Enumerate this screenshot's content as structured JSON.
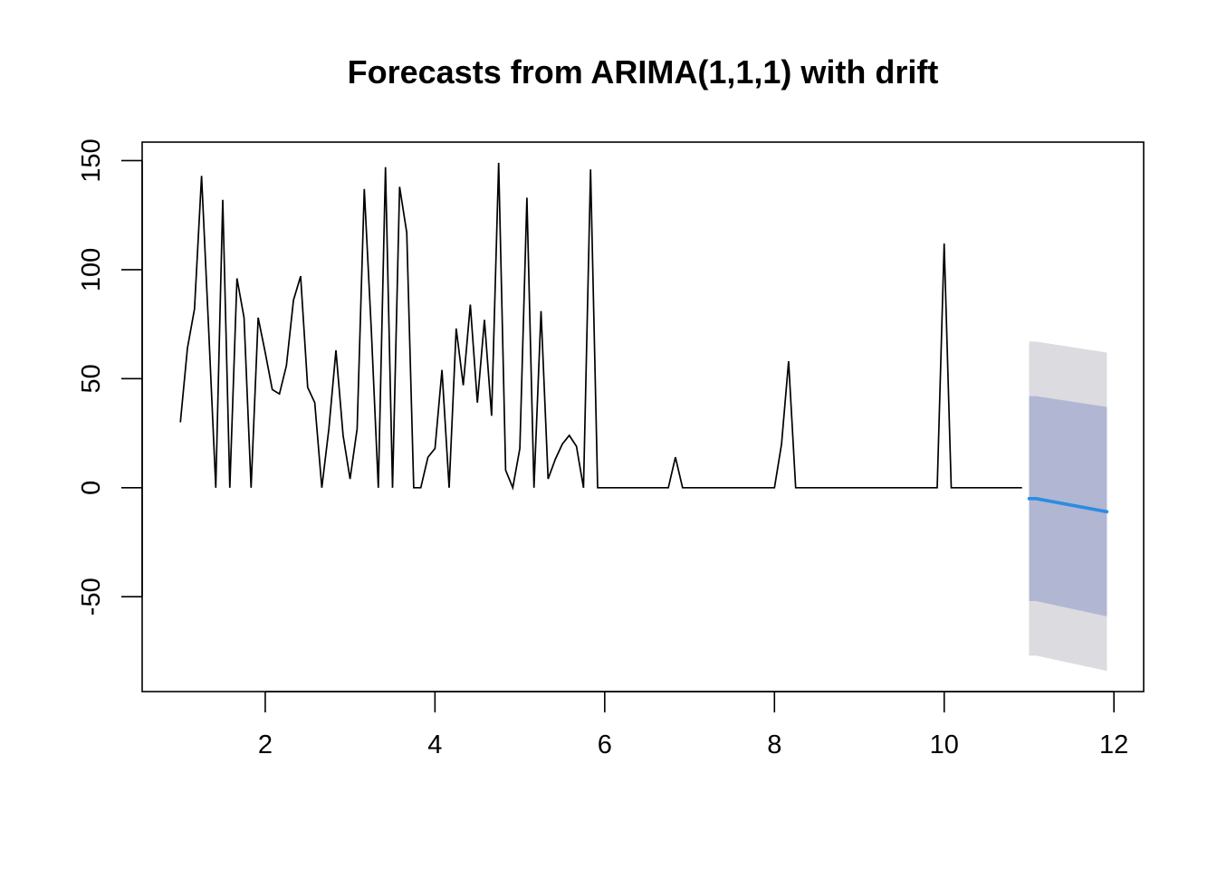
{
  "chart_data": {
    "type": "line",
    "title": "Forecasts from ARIMA(1,1,1) with drift",
    "xlabel": "",
    "ylabel": "",
    "xlim": [
      0.55,
      12.35
    ],
    "ylim": [
      -93.5,
      158.5
    ],
    "x_ticks": [
      2,
      4,
      6,
      8,
      10,
      12
    ],
    "y_ticks": [
      -50,
      0,
      50,
      100,
      150
    ],
    "grid": false,
    "legend": "none",
    "observed": {
      "x": [
        1.0,
        1.083,
        1.167,
        1.25,
        1.333,
        1.417,
        1.5,
        1.583,
        1.667,
        1.75,
        1.833,
        1.917,
        2.0,
        2.083,
        2.167,
        2.25,
        2.333,
        2.417,
        2.5,
        2.583,
        2.667,
        2.75,
        2.833,
        2.917,
        3.0,
        3.083,
        3.167,
        3.25,
        3.333,
        3.417,
        3.5,
        3.583,
        3.667,
        3.75,
        3.833,
        3.917,
        4.0,
        4.083,
        4.167,
        4.25,
        4.333,
        4.417,
        4.5,
        4.583,
        4.667,
        4.75,
        4.833,
        4.917,
        5.0,
        5.083,
        5.167,
        5.25,
        5.333,
        5.417,
        5.5,
        5.583,
        5.667,
        5.75,
        5.833,
        5.917,
        6.0,
        6.083,
        6.167,
        6.25,
        6.333,
        6.417,
        6.5,
        6.583,
        6.667,
        6.75,
        6.833,
        6.917,
        7.0,
        7.083,
        7.167,
        7.25,
        7.333,
        7.417,
        7.5,
        7.583,
        7.667,
        7.75,
        7.833,
        7.917,
        8.0,
        8.083,
        8.167,
        8.25,
        8.333,
        8.417,
        8.5,
        8.583,
        8.667,
        8.75,
        8.833,
        8.917,
        9.0,
        9.083,
        9.167,
        9.25,
        9.333,
        9.417,
        9.5,
        9.583,
        9.667,
        9.75,
        9.833,
        9.917,
        10.0,
        10.083,
        10.167,
        10.25,
        10.333,
        10.417,
        10.5,
        10.583,
        10.667,
        10.75,
        10.833,
        10.917
      ],
      "y": [
        30,
        64,
        82,
        143,
        73,
        0,
        132,
        0,
        96,
        78,
        0,
        78,
        62,
        45,
        43,
        56,
        86,
        97,
        46,
        39,
        0,
        27,
        63,
        24,
        4,
        27,
        137,
        72,
        0,
        147,
        0,
        138,
        117,
        0,
        0,
        14,
        18,
        54,
        0,
        73,
        47,
        84,
        39,
        77,
        33,
        149,
        8,
        0,
        18,
        133,
        0,
        81,
        4,
        13,
        20,
        24,
        19,
        0,
        146,
        0,
        0,
        0,
        0,
        0,
        0,
        0,
        0,
        0,
        0,
        0,
        14,
        0,
        0,
        0,
        0,
        0,
        0,
        0,
        0,
        0,
        0,
        0,
        0,
        0,
        0,
        20,
        58,
        0,
        0,
        0,
        0,
        0,
        0,
        0,
        0,
        0,
        0,
        0,
        0,
        0,
        0,
        0,
        0,
        0,
        0,
        0,
        0,
        0,
        112,
        0,
        0,
        0,
        0,
        0,
        0,
        0,
        0,
        0,
        0,
        0
      ]
    },
    "forecast": {
      "x": [
        11.0,
        11.083,
        11.917
      ],
      "mean": [
        -5,
        -5,
        -11
      ],
      "lower80": [
        -52,
        -52,
        -59
      ],
      "upper80": [
        42,
        42,
        37
      ],
      "lower95": [
        -77,
        -77,
        -84
      ],
      "upper95": [
        67,
        67,
        62
      ]
    },
    "colors": {
      "observed_line": "#000000",
      "forecast_line": "#2b8ce3",
      "band_80": "#b1b6d2",
      "band_95": "#dbdbe0"
    }
  }
}
